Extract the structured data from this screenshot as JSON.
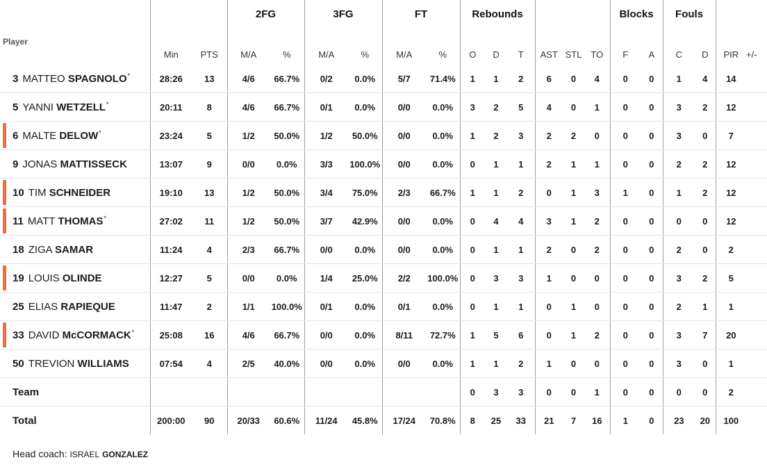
{
  "groups": {
    "fg2": "2FG",
    "fg3": "3FG",
    "ft": "FT",
    "reb": "Rebounds",
    "blk": "Blocks",
    "fouls": "Fouls"
  },
  "columns": {
    "player": "Player",
    "min": "Min",
    "pts": "PTS",
    "fg2_ma": "M/A",
    "fg2_pct": "%",
    "fg3_ma": "M/A",
    "fg3_pct": "%",
    "ft_ma": "M/A",
    "ft_pct": "%",
    "o": "O",
    "d": "D",
    "t": "T",
    "ast": "AST",
    "stl": "STL",
    "to": "TO",
    "blk_f": "F",
    "blk_a": "A",
    "foul_c": "C",
    "foul_d": "D",
    "pir": "PIR",
    "pm": "+/-"
  },
  "players": [
    {
      "num": "3",
      "first": "MATTEO",
      "last": "SPAGNOLO",
      "star": "*",
      "bar": false,
      "min": "28:26",
      "pts": "13",
      "fg2": "4/6",
      "fg2p": "66.7%",
      "fg3": "0/2",
      "fg3p": "0.0%",
      "ft": "5/7",
      "ftp": "71.4%",
      "o": "1",
      "d": "1",
      "t": "2",
      "ast": "6",
      "stl": "0",
      "to": "4",
      "bf": "0",
      "ba": "0",
      "fc": "1",
      "fd": "4",
      "pir": "14",
      "pm": ""
    },
    {
      "num": "5",
      "first": "YANNI",
      "last": "WETZELL",
      "star": "*",
      "bar": false,
      "min": "20:11",
      "pts": "8",
      "fg2": "4/6",
      "fg2p": "66.7%",
      "fg3": "0/1",
      "fg3p": "0.0%",
      "ft": "0/0",
      "ftp": "0.0%",
      "o": "3",
      "d": "2",
      "t": "5",
      "ast": "4",
      "stl": "0",
      "to": "1",
      "bf": "0",
      "ba": "0",
      "fc": "3",
      "fd": "2",
      "pir": "12",
      "pm": ""
    },
    {
      "num": "6",
      "first": "MALTE",
      "last": "DELOW",
      "star": "*",
      "bar": true,
      "min": "23:24",
      "pts": "5",
      "fg2": "1/2",
      "fg2p": "50.0%",
      "fg3": "1/2",
      "fg3p": "50.0%",
      "ft": "0/0",
      "ftp": "0.0%",
      "o": "1",
      "d": "2",
      "t": "3",
      "ast": "2",
      "stl": "2",
      "to": "0",
      "bf": "0",
      "ba": "0",
      "fc": "3",
      "fd": "0",
      "pir": "7",
      "pm": ""
    },
    {
      "num": "9",
      "first": "JONAS",
      "last": "MATTISSECK",
      "star": "",
      "bar": false,
      "min": "13:07",
      "pts": "9",
      "fg2": "0/0",
      "fg2p": "0.0%",
      "fg3": "3/3",
      "fg3p": "100.0%",
      "ft": "0/0",
      "ftp": "0.0%",
      "o": "0",
      "d": "1",
      "t": "1",
      "ast": "2",
      "stl": "1",
      "to": "1",
      "bf": "0",
      "ba": "0",
      "fc": "2",
      "fd": "2",
      "pir": "12",
      "pm": ""
    },
    {
      "num": "10",
      "first": "TIM",
      "last": "SCHNEIDER",
      "star": "",
      "bar": true,
      "min": "19:10",
      "pts": "13",
      "fg2": "1/2",
      "fg2p": "50.0%",
      "fg3": "3/4",
      "fg3p": "75.0%",
      "ft": "2/3",
      "ftp": "66.7%",
      "o": "1",
      "d": "1",
      "t": "2",
      "ast": "0",
      "stl": "1",
      "to": "3",
      "bf": "1",
      "ba": "0",
      "fc": "1",
      "fd": "2",
      "pir": "12",
      "pm": ""
    },
    {
      "num": "11",
      "first": "MATT",
      "last": "THOMAS",
      "star": "*",
      "bar": true,
      "min": "27:02",
      "pts": "11",
      "fg2": "1/2",
      "fg2p": "50.0%",
      "fg3": "3/7",
      "fg3p": "42.9%",
      "ft": "0/0",
      "ftp": "0.0%",
      "o": "0",
      "d": "4",
      "t": "4",
      "ast": "3",
      "stl": "1",
      "to": "2",
      "bf": "0",
      "ba": "0",
      "fc": "0",
      "fd": "0",
      "pir": "12",
      "pm": ""
    },
    {
      "num": "18",
      "first": "ZIGA",
      "last": "SAMAR",
      "star": "",
      "bar": false,
      "min": "11:24",
      "pts": "4",
      "fg2": "2/3",
      "fg2p": "66.7%",
      "fg3": "0/0",
      "fg3p": "0.0%",
      "ft": "0/0",
      "ftp": "0.0%",
      "o": "0",
      "d": "1",
      "t": "1",
      "ast": "2",
      "stl": "0",
      "to": "2",
      "bf": "0",
      "ba": "0",
      "fc": "2",
      "fd": "0",
      "pir": "2",
      "pm": ""
    },
    {
      "num": "19",
      "first": "LOUIS",
      "last": "OLINDE",
      "star": "",
      "bar": true,
      "min": "12:27",
      "pts": "5",
      "fg2": "0/0",
      "fg2p": "0.0%",
      "fg3": "1/4",
      "fg3p": "25.0%",
      "ft": "2/2",
      "ftp": "100.0%",
      "o": "0",
      "d": "3",
      "t": "3",
      "ast": "1",
      "stl": "0",
      "to": "0",
      "bf": "0",
      "ba": "0",
      "fc": "3",
      "fd": "2",
      "pir": "5",
      "pm": ""
    },
    {
      "num": "25",
      "first": "ELIAS",
      "last": "RAPIEQUE",
      "star": "",
      "bar": false,
      "min": "11:47",
      "pts": "2",
      "fg2": "1/1",
      "fg2p": "100.0%",
      "fg3": "0/1",
      "fg3p": "0.0%",
      "ft": "0/1",
      "ftp": "0.0%",
      "o": "0",
      "d": "1",
      "t": "1",
      "ast": "0",
      "stl": "1",
      "to": "0",
      "bf": "0",
      "ba": "0",
      "fc": "2",
      "fd": "1",
      "pir": "1",
      "pm": ""
    },
    {
      "num": "33",
      "first": "DAVID",
      "last": "McCORMACK",
      "star": "*",
      "bar": true,
      "min": "25:08",
      "pts": "16",
      "fg2": "4/6",
      "fg2p": "66.7%",
      "fg3": "0/0",
      "fg3p": "0.0%",
      "ft": "8/11",
      "ftp": "72.7%",
      "o": "1",
      "d": "5",
      "t": "6",
      "ast": "0",
      "stl": "1",
      "to": "2",
      "bf": "0",
      "ba": "0",
      "fc": "3",
      "fd": "7",
      "pir": "20",
      "pm": ""
    },
    {
      "num": "50",
      "first": "TREVION",
      "last": "WILLIAMS",
      "star": "",
      "bar": false,
      "min": "07:54",
      "pts": "4",
      "fg2": "2/5",
      "fg2p": "40.0%",
      "fg3": "0/0",
      "fg3p": "0.0%",
      "ft": "0/0",
      "ftp": "0.0%",
      "o": "1",
      "d": "1",
      "t": "2",
      "ast": "1",
      "stl": "0",
      "to": "0",
      "bf": "0",
      "ba": "0",
      "fc": "3",
      "fd": "0",
      "pir": "1",
      "pm": ""
    }
  ],
  "team": {
    "label": "Team",
    "o": "0",
    "d": "3",
    "t": "3",
    "ast": "0",
    "stl": "0",
    "to": "1",
    "bf": "0",
    "ba": "0",
    "fc": "0",
    "fd": "0",
    "pir": "2"
  },
  "total": {
    "label": "Total",
    "min": "200:00",
    "pts": "90",
    "fg2": "20/33",
    "fg2p": "60.6%",
    "fg3": "11/24",
    "fg3p": "45.8%",
    "ft": "17/24",
    "ftp": "70.8%",
    "o": "8",
    "d": "25",
    "t": "33",
    "ast": "21",
    "stl": "7",
    "to": "16",
    "bf": "1",
    "ba": "0",
    "fc": "23",
    "fd": "20",
    "pir": "100"
  },
  "coach": {
    "label": "Head coach:",
    "first": "ISRAEL",
    "last": "GONZALEZ"
  },
  "colors": {
    "starter_bar": "#f26b3a",
    "divider": "#9e9e9e"
  }
}
